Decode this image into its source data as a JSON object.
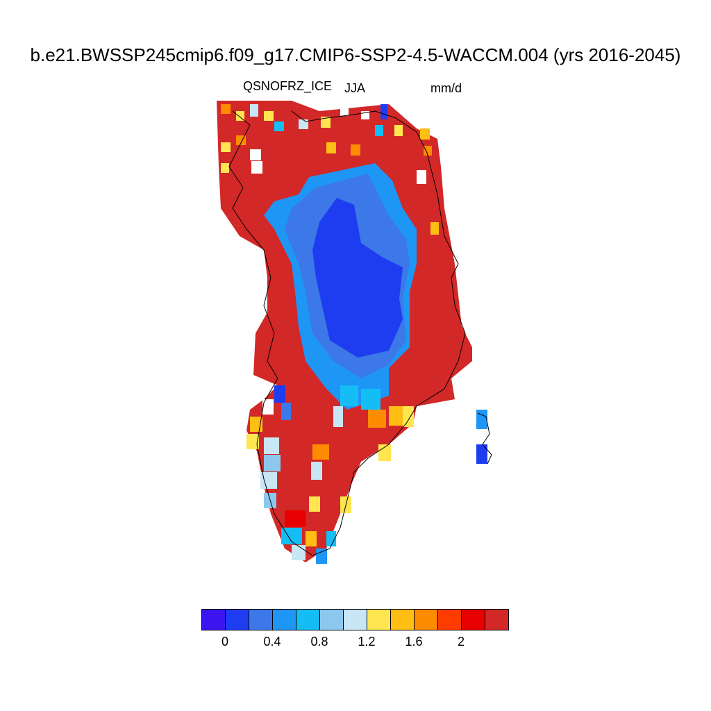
{
  "title": "b.e21.BWSSP245cmip6.f09_g17.CMIP6-SSP2-4.5-WACCM.004 (yrs 2016-2045)",
  "variable": "QSNOFRZ_ICE",
  "season": "JJA",
  "units": "mm/d",
  "colorbar": {
    "colors": [
      "#3c14f0",
      "#1e3cf0",
      "#3c78e8",
      "#1e96f5",
      "#14bef5",
      "#8cc8ee",
      "#c8e6f5",
      "#ffe650",
      "#ffbe14",
      "#ff8c00",
      "#ff3c00",
      "#e60000",
      "#d22828"
    ],
    "tick_labels": [
      "0",
      "0.4",
      "0.8",
      "1.2",
      "1.6",
      "2"
    ]
  },
  "map": {
    "region": "Greenland",
    "field_description": "QSNOFRZ_ICE JJA mean over Greenland ice sheet; values near 0-0.4 in the central interior rising to >2 along the margins"
  }
}
